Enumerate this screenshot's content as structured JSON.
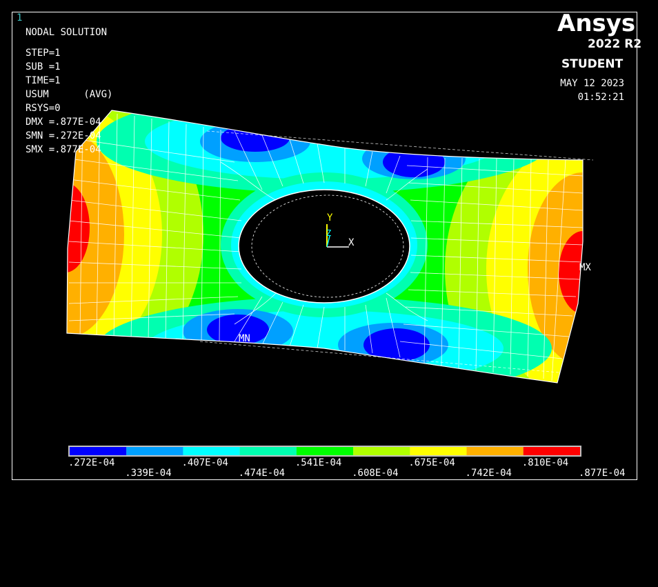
{
  "window_number": "1",
  "info": {
    "title": "NODAL SOLUTION",
    "step": "STEP=1",
    "sub": "SUB =1",
    "time": "TIME=1",
    "usum": "USUM      (AVG)",
    "rsys": "RSYS=0",
    "dmx": "DMX =.877E-04",
    "smn": "SMN =.272E-04",
    "smx": "SMX =.877E-04"
  },
  "logo": {
    "name": "Ansys",
    "version": "2022 R2",
    "edition": "STUDENT"
  },
  "date": "MAY 12 2023",
  "time_of_day": "01:52:21",
  "markers": {
    "min": "MN",
    "max": "MX"
  },
  "triad": {
    "x": "X",
    "y": "Y",
    "z": "Z"
  },
  "legend": {
    "colors": [
      "#0000ff",
      "#00a0ff",
      "#00ffff",
      "#00ffb0",
      "#00ff00",
      "#b0ff00",
      "#ffff00",
      "#ffb000",
      "#ff0000"
    ],
    "labels_top": [
      ".272E-04",
      ".407E-04",
      ".541E-04",
      ".675E-04",
      ".810E-04"
    ],
    "labels_bottom": [
      ".339E-04",
      ".474E-04",
      ".608E-04",
      ".742E-04",
      ".877E-04"
    ]
  }
}
